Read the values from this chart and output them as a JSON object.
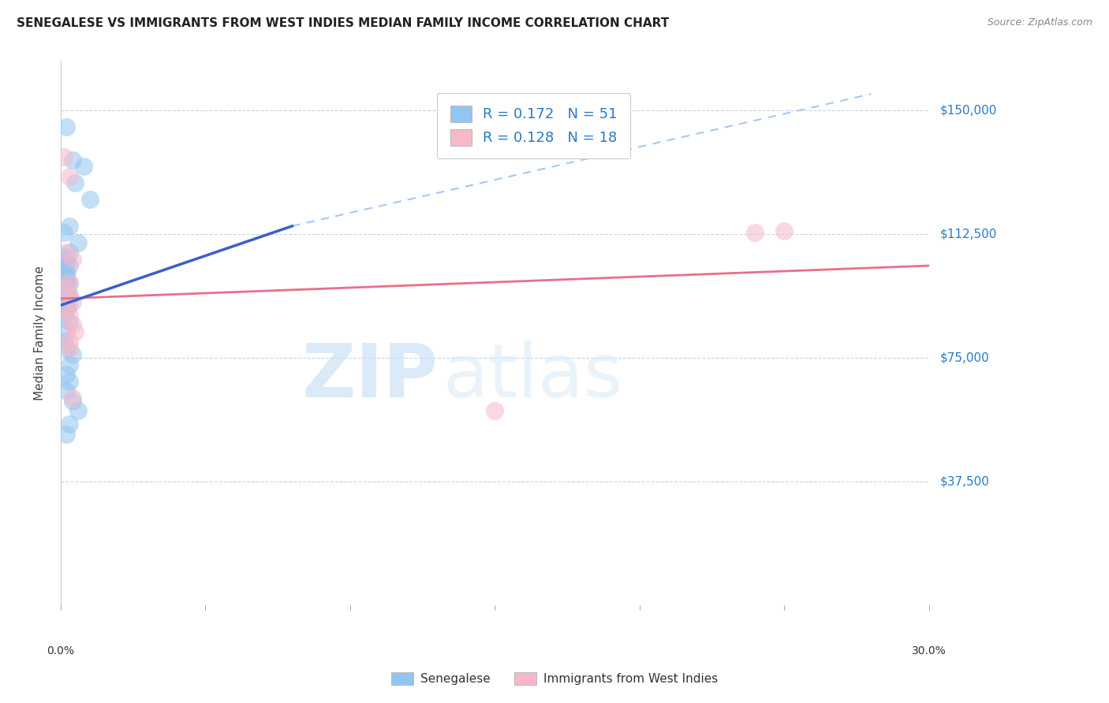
{
  "title": "SENEGALESE VS IMMIGRANTS FROM WEST INDIES MEDIAN FAMILY INCOME CORRELATION CHART",
  "source": "Source: ZipAtlas.com",
  "ylabel": "Median Family Income",
  "ytick_labels": [
    "$150,000",
    "$112,500",
    "$75,000",
    "$37,500"
  ],
  "ytick_values": [
    150000,
    112500,
    75000,
    37500
  ],
  "ylim": [
    0,
    165000
  ],
  "xlim": [
    0.0,
    0.3
  ],
  "legend_label1": "R = 0.172   N = 51",
  "legend_label2": "R = 0.128   N = 18",
  "watermark_zip": "ZIP",
  "watermark_atlas": "atlas",
  "blue_color": "#92c5f0",
  "pink_color": "#f7b8c8",
  "trend_blue": "#3a5fcd",
  "trend_pink": "#e8708a",
  "dashed_blue": "#a8c8f0",
  "senegalese_x": [
    0.002,
    0.004,
    0.008,
    0.005,
    0.01,
    0.003,
    0.006,
    0.001,
    0.003,
    0.001,
    0.002,
    0.002,
    0.003,
    0.001,
    0.002,
    0.002,
    0.001,
    0.002,
    0.002,
    0.001,
    0.002,
    0.003,
    0.001,
    0.002,
    0.002,
    0.001,
    0.002,
    0.002,
    0.003,
    0.002,
    0.001,
    0.002,
    0.002,
    0.001,
    0.003,
    0.002,
    0.002,
    0.001,
    0.003,
    0.002,
    0.001,
    0.002,
    0.004,
    0.003,
    0.002,
    0.003,
    0.002,
    0.004,
    0.006,
    0.003,
    0.002
  ],
  "senegalese_y": [
    145000,
    135000,
    133000,
    128000,
    123000,
    115000,
    110000,
    113000,
    107000,
    106000,
    105000,
    104000,
    103000,
    102000,
    101000,
    100500,
    100000,
    99500,
    99000,
    98500,
    98000,
    97500,
    97000,
    96500,
    96000,
    95500,
    95000,
    94500,
    94000,
    93500,
    93000,
    92500,
    92000,
    91500,
    91000,
    90500,
    90000,
    88000,
    86000,
    83000,
    80000,
    78000,
    76000,
    73000,
    70000,
    68000,
    65000,
    62000,
    59000,
    55000,
    52000
  ],
  "westindies_x": [
    0.001,
    0.003,
    0.002,
    0.004,
    0.003,
    0.002,
    0.003,
    0.004,
    0.002,
    0.003,
    0.004,
    0.005,
    0.003,
    0.003,
    0.004,
    0.15,
    0.24,
    0.25
  ],
  "westindies_y": [
    136000,
    130000,
    107000,
    105000,
    98000,
    96000,
    94000,
    92000,
    90000,
    88000,
    85000,
    83000,
    80000,
    78000,
    63000,
    59000,
    113000,
    113500
  ],
  "legend_bottom_label1": "Senegalese",
  "legend_bottom_label2": "Immigrants from West Indies",
  "background_color": "#ffffff",
  "grid_color": "#c8d4e8"
}
